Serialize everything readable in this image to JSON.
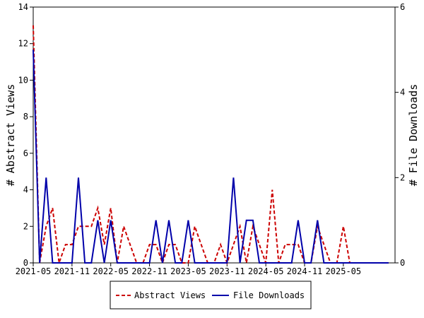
{
  "chart_data": {
    "type": "line",
    "x_ticks": [
      "2021-05",
      "2021-11",
      "2022-05",
      "2022-11",
      "2023-05",
      "2023-11",
      "2024-05",
      "2024-11",
      "2025-05"
    ],
    "left_axis": {
      "label": "# Abstract Views",
      "ylim": [
        0,
        14
      ],
      "ticks": [
        "0",
        "2",
        "4",
        "6",
        "8",
        "10",
        "12",
        "14"
      ]
    },
    "right_axis": {
      "label": "# File Downloads",
      "ylim": [
        0,
        6
      ],
      "ticks": [
        "0",
        "2",
        "4",
        "6"
      ]
    },
    "x_range": [
      "2021-05",
      "2026-01"
    ],
    "grid": false,
    "legend_position": "bottom-center",
    "series": [
      {
        "name": "Abstract Views",
        "axis": "left",
        "color": "#cc0000",
        "style": "dashed",
        "x": [
          "2021-05",
          "2021-06",
          "2021-07",
          "2021-08",
          "2021-09",
          "2021-10",
          "2021-11",
          "2021-12",
          "2022-01",
          "2022-02",
          "2022-03",
          "2022-04",
          "2022-05",
          "2022-06",
          "2022-07",
          "2022-08",
          "2022-09",
          "2022-10",
          "2022-11",
          "2022-12",
          "2023-01",
          "2023-02",
          "2023-03",
          "2023-04",
          "2023-05",
          "2023-06",
          "2023-07",
          "2023-08",
          "2023-09",
          "2023-10",
          "2023-11",
          "2023-12",
          "2024-01",
          "2024-02",
          "2024-03",
          "2024-04",
          "2024-05",
          "2024-06",
          "2024-07",
          "2024-08",
          "2024-09",
          "2024-10",
          "2024-11",
          "2024-12",
          "2025-01",
          "2025-02",
          "2025-03",
          "2025-04",
          "2025-05",
          "2025-06",
          "2025-07",
          "2025-08",
          "2025-09",
          "2025-10",
          "2025-11",
          "2025-12"
        ],
        "values": [
          13,
          0,
          2,
          3,
          0,
          1,
          1,
          2,
          2,
          2,
          3,
          1,
          3,
          0,
          2,
          1,
          0,
          0,
          1,
          1,
          0,
          1,
          1,
          0,
          0,
          2,
          1,
          0,
          0,
          1,
          0,
          1,
          2,
          0,
          2,
          1,
          0,
          4,
          0,
          1,
          1,
          1,
          0,
          0,
          2,
          1,
          0,
          0,
          2,
          0,
          0,
          0,
          0,
          0,
          0,
          0
        ]
      },
      {
        "name": "File Downloads",
        "axis": "right",
        "color": "#0000aa",
        "style": "solid",
        "x": [
          "2021-05",
          "2021-06",
          "2021-07",
          "2021-08",
          "2021-09",
          "2021-10",
          "2021-11",
          "2021-12",
          "2022-01",
          "2022-02",
          "2022-03",
          "2022-04",
          "2022-05",
          "2022-06",
          "2022-07",
          "2022-08",
          "2022-09",
          "2022-10",
          "2022-11",
          "2022-12",
          "2023-01",
          "2023-02",
          "2023-03",
          "2023-04",
          "2023-05",
          "2023-06",
          "2023-07",
          "2023-08",
          "2023-09",
          "2023-10",
          "2023-11",
          "2023-12",
          "2024-01",
          "2024-02",
          "2024-03",
          "2024-04",
          "2024-05",
          "2024-06",
          "2024-07",
          "2024-08",
          "2024-09",
          "2024-10",
          "2024-11",
          "2024-12",
          "2025-01",
          "2025-02",
          "2025-03",
          "2025-04",
          "2025-05",
          "2025-06",
          "2025-07",
          "2025-08",
          "2025-09",
          "2025-10",
          "2025-11",
          "2025-12"
        ],
        "values": [
          5,
          0,
          2,
          0,
          0,
          0,
          0,
          2,
          0,
          0,
          1,
          0,
          1,
          0,
          0,
          0,
          0,
          0,
          0,
          1,
          0,
          1,
          0,
          0,
          1,
          0,
          0,
          0,
          0,
          0,
          0,
          2,
          0,
          1,
          1,
          0,
          0,
          0,
          0,
          0,
          0,
          1,
          0,
          0,
          1,
          0,
          0,
          0,
          0,
          0,
          0,
          0,
          0,
          0,
          0,
          0
        ]
      }
    ]
  }
}
